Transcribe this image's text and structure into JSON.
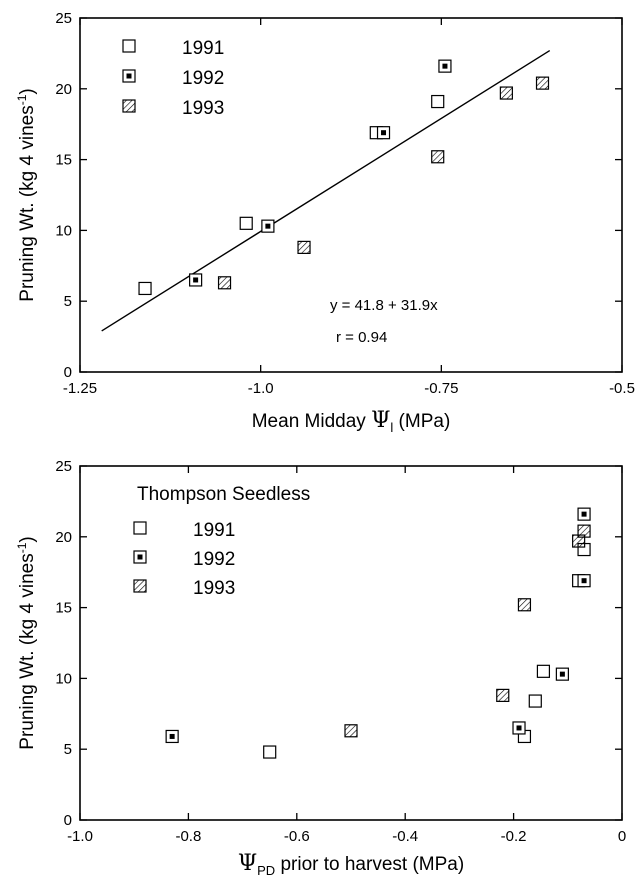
{
  "chart_data": [
    {
      "type": "scatter",
      "xlabel": {
        "main": "Mean Midday ",
        "symbol": "Ψ",
        "sub": "l",
        "rest": " (MPa)"
      },
      "ylabel": "Pruning Wt. (kg 4 vines",
      "ylabel_sup": "-1",
      "ylabel_close": ")",
      "xlim": [
        -1.25,
        -0.5
      ],
      "ylim": [
        0,
        25
      ],
      "xticks": [
        -1.25,
        -1.0,
        -0.75,
        -0.5
      ],
      "xtick_labels": [
        "-1.25",
        "-1.0",
        "-0.75",
        "-0.5"
      ],
      "yticks": [
        0,
        5,
        10,
        15,
        20,
        25
      ],
      "ytick_labels": [
        "0",
        "5",
        "10",
        "15",
        "20",
        "25"
      ],
      "legend_title": "",
      "legend_placement": "top-left",
      "series": [
        {
          "name": "1991",
          "marker": "open-square",
          "points": [
            [
              -1.16,
              5.9
            ],
            [
              -1.02,
              10.5
            ],
            [
              -0.84,
              16.9
            ],
            [
              -0.755,
              19.1
            ]
          ]
        },
        {
          "name": "1992",
          "marker": "dot-square",
          "points": [
            [
              -1.09,
              6.5
            ],
            [
              -0.99,
              10.3
            ],
            [
              -0.83,
              16.9
            ],
            [
              -0.745,
              21.6
            ]
          ]
        },
        {
          "name": "1993",
          "marker": "hatched-square",
          "points": [
            [
              -1.05,
              6.3
            ],
            [
              -0.94,
              8.8
            ],
            [
              -0.755,
              15.2
            ],
            [
              -0.66,
              19.7
            ],
            [
              -0.61,
              20.4
            ]
          ]
        }
      ],
      "fit_line": {
        "x": [
          -1.22,
          -0.6
        ],
        "y": [
          2.9,
          22.7
        ]
      },
      "equation": "y = 41.8 + 31.9x",
      "r_label": "r = 0.94"
    },
    {
      "type": "scatter",
      "xlabel": {
        "main": "",
        "symbol": "Ψ",
        "sub": "PD",
        "rest": " prior to harvest (MPa)"
      },
      "ylabel": "Pruning Wt. (kg 4 vines",
      "ylabel_sup": "-1",
      "ylabel_close": ")",
      "xlim": [
        -1.0,
        0
      ],
      "ylim": [
        0,
        25
      ],
      "xticks": [
        -1.0,
        -0.8,
        -0.6,
        -0.4,
        -0.2,
        0
      ],
      "xtick_labels": [
        "-1.0",
        "-0.8",
        "-0.6",
        "-0.4",
        "-0.2",
        "0"
      ],
      "yticks": [
        0,
        5,
        10,
        15,
        20,
        25
      ],
      "ytick_labels": [
        "0",
        "5",
        "10",
        "15",
        "20",
        "25"
      ],
      "legend_title": "Thompson Seedless",
      "legend_placement": "top-left",
      "series": [
        {
          "name": "1991",
          "marker": "open-square",
          "points": [
            [
              -0.65,
              4.8
            ],
            [
              -0.18,
              5.9
            ],
            [
              -0.16,
              8.4
            ],
            [
              -0.145,
              10.5
            ],
            [
              -0.08,
              16.9
            ],
            [
              -0.07,
              19.1
            ]
          ]
        },
        {
          "name": "1992",
          "marker": "dot-square",
          "points": [
            [
              -0.83,
              5.9
            ],
            [
              -0.19,
              6.5
            ],
            [
              -0.11,
              10.3
            ],
            [
              -0.07,
              16.9
            ],
            [
              -0.07,
              21.6
            ]
          ]
        },
        {
          "name": "1993",
          "marker": "hatched-square",
          "points": [
            [
              -0.5,
              6.3
            ],
            [
              -0.22,
              8.8
            ],
            [
              -0.18,
              15.2
            ],
            [
              -0.08,
              19.7
            ],
            [
              -0.07,
              20.4
            ]
          ]
        }
      ],
      "fit_line": null,
      "equation": "",
      "r_label": ""
    }
  ]
}
